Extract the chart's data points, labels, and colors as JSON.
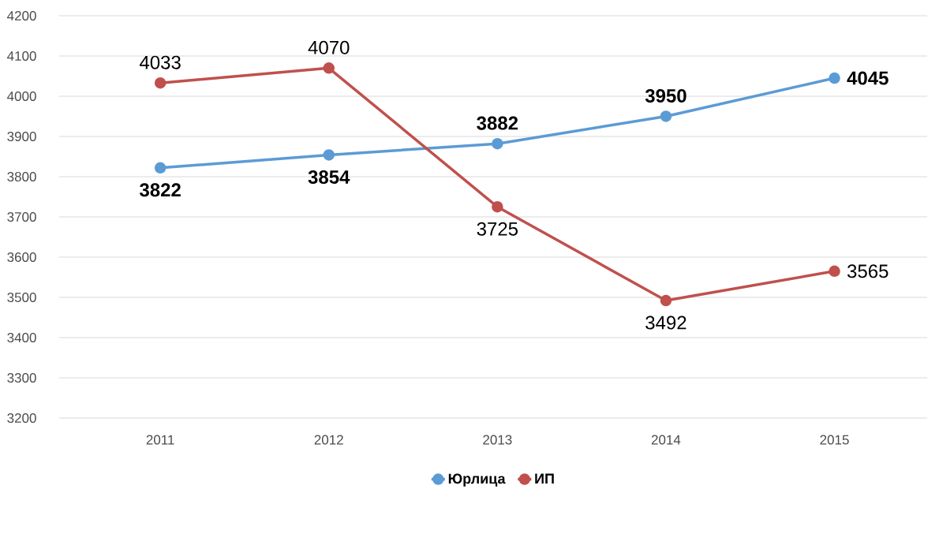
{
  "chart_data": {
    "type": "line",
    "categories": [
      "2011",
      "2012",
      "2013",
      "2014",
      "2015"
    ],
    "series": [
      {
        "name": "Юрлица",
        "color": "#5b9bd5",
        "values": [
          3822,
          3854,
          3882,
          3950,
          4045
        ]
      },
      {
        "name": "ИП",
        "color": "#c0504d",
        "values": [
          4033,
          4070,
          3725,
          3492,
          3565
        ]
      }
    ],
    "ylim": [
      3200,
      4200
    ],
    "yticks": [
      3200,
      3300,
      3400,
      3500,
      3600,
      3700,
      3800,
      3900,
      4000,
      4100,
      4200
    ],
    "grid": "y",
    "legend": "bottom",
    "marker": "circle",
    "line_style": "solid",
    "data_labels": true
  }
}
